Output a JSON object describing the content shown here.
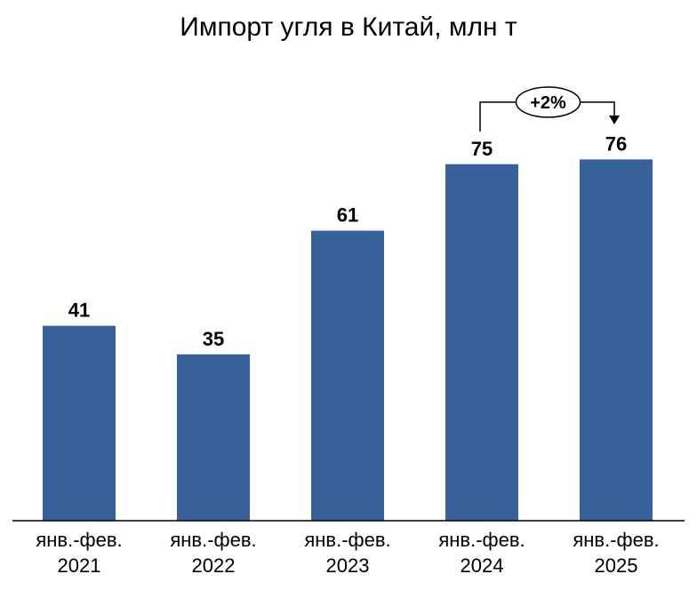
{
  "chart_data": {
    "type": "bar",
    "title": "Импорт угля в Китай, млн т",
    "categories": [
      [
        "янв.-фев.",
        "2021"
      ],
      [
        "янв.-фев.",
        "2022"
      ],
      [
        "янв.-фев.",
        "2023"
      ],
      [
        "янв.-фев.",
        "2024"
      ],
      [
        "янв.-фев.",
        "2025"
      ]
    ],
    "values": [
      41,
      35,
      61,
      75,
      76
    ],
    "data_labels": [
      "41",
      "35",
      "61",
      "75",
      "76"
    ],
    "ylim": [
      0,
      80
    ],
    "grid": false,
    "legend": "none",
    "bar_color": "#36619A",
    "annotation": {
      "label": "+2%",
      "from_index": 3,
      "to_index": 4
    }
  }
}
